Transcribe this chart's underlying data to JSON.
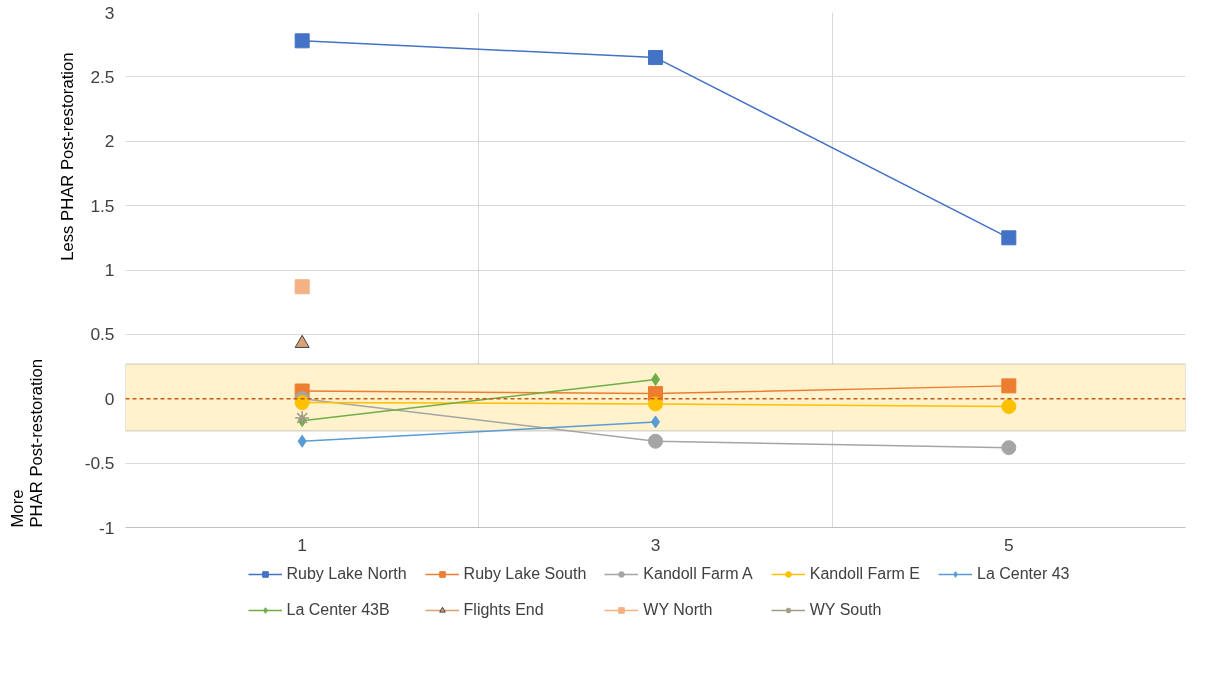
{
  "chart_data": {
    "type": "line",
    "categories": [
      "1",
      "3",
      "5"
    ],
    "ylim": [
      -1,
      3
    ],
    "yticks": [
      -1,
      -0.5,
      0,
      0.5,
      1,
      1.5,
      2,
      2.5,
      3
    ],
    "grid": true,
    "legend": "bottom",
    "annotations": [
      "Less PHAR Post-restoration",
      "More PHAR Post-restoration"
    ],
    "ref_lines": [
      {
        "axis": "y",
        "value": 0,
        "label": null,
        "color": "#c55a11",
        "line_style": "dashed"
      }
    ],
    "bands": [
      {
        "axis": "y",
        "from": -0.25,
        "to": 0.27,
        "label": null,
        "color": "#fff2cc"
      }
    ],
    "series": [
      {
        "name": "Ruby Lake North",
        "color": "#4472c4",
        "marker": "square",
        "values": [
          2.78,
          2.65,
          1.25
        ]
      },
      {
        "name": "Ruby Lake South",
        "color": "#ed7d31",
        "marker": "square",
        "values": [
          0.06,
          0.04,
          0.1
        ]
      },
      {
        "name": "Kandoll Farm A",
        "color": "#a5a5a5",
        "marker": "circle",
        "values": [
          0,
          -0.33,
          -0.38
        ]
      },
      {
        "name": "Kandoll Farm E",
        "color": "#ffc000",
        "marker": "circle",
        "values": [
          -0.03,
          -0.04,
          -0.06
        ]
      },
      {
        "name": "La Center 43",
        "color": "#5b9bd5",
        "marker": "diamond",
        "values": [
          -0.33,
          -0.18,
          null
        ]
      },
      {
        "name": "La Center 43B",
        "color": "#70ad47",
        "marker": "diamond",
        "values": [
          -0.17,
          0.15,
          null
        ]
      },
      {
        "name": "Flights End",
        "color": "#d9a07a",
        "marker": "triangle",
        "values": [
          0.43,
          null,
          null
        ]
      },
      {
        "name": "WY North",
        "color": "#f4b183",
        "marker": "square",
        "values": [
          0.87,
          null,
          null
        ]
      },
      {
        "name": "WY South",
        "color": "#a39b86",
        "marker": "cross",
        "values": [
          -0.15,
          null,
          null
        ]
      }
    ]
  }
}
